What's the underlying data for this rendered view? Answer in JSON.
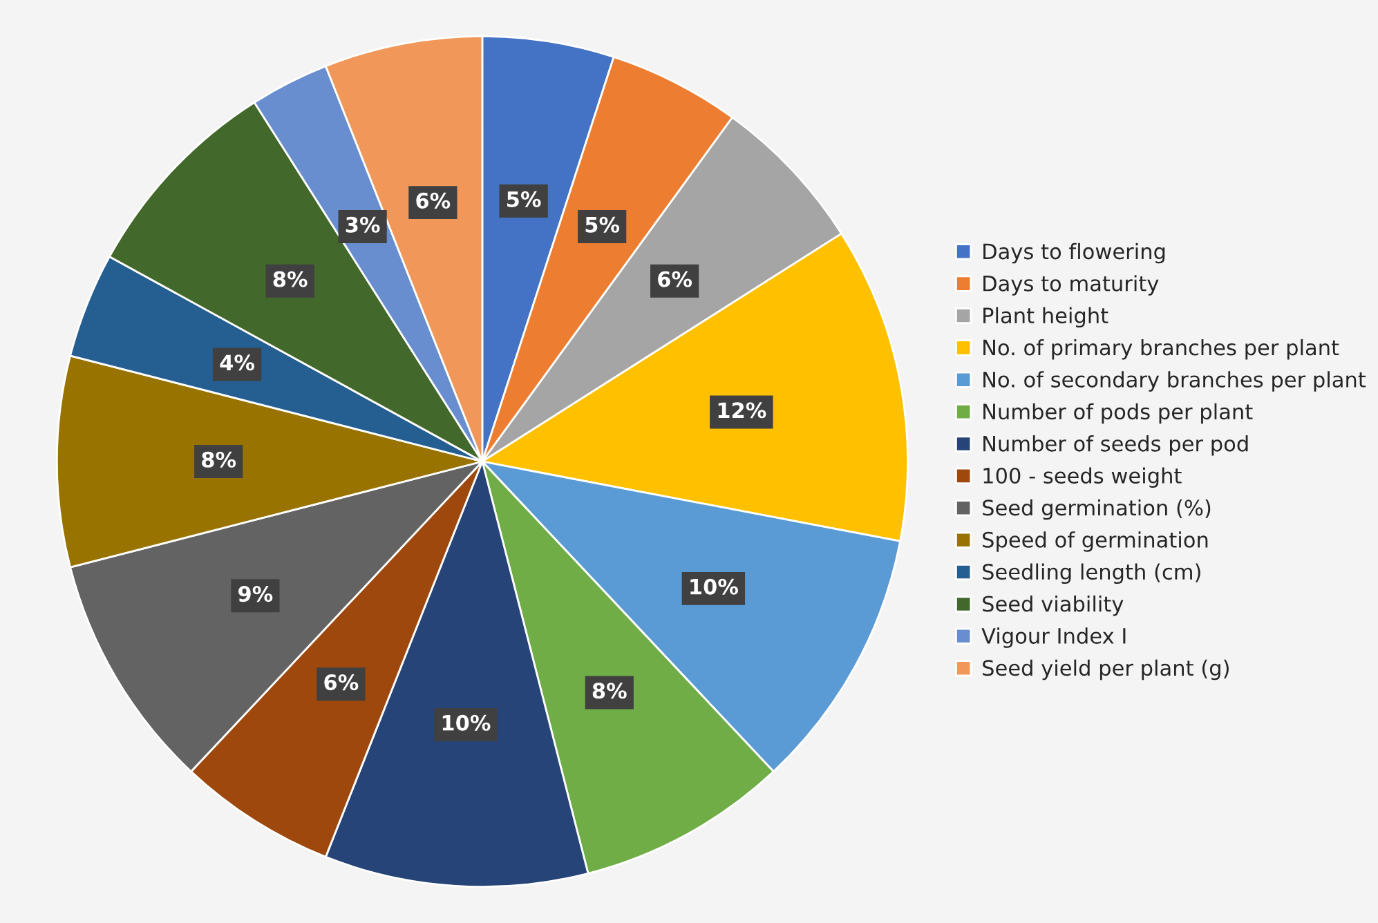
{
  "chart_data": {
    "type": "pie",
    "categories": [
      "Days to flowering",
      "Days to maturity",
      "Plant height",
      "No. of primary branches per plant",
      "No. of secondary branches per plant",
      "Number of pods per plant",
      "Number of seeds per pod",
      "100 - seeds weight",
      "Seed germination (%)",
      "Speed of germination",
      "Seedling length (cm)",
      "Seed viability",
      "Vigour Index I",
      "Seed yield per plant (g)"
    ],
    "values": [
      5,
      5,
      6,
      12,
      10,
      8,
      10,
      6,
      9,
      8,
      4,
      8,
      3,
      6
    ],
    "value_labels": [
      "5%",
      "5%",
      "6%",
      "12%",
      "10%",
      "8%",
      "10%",
      "6%",
      "9%",
      "8%",
      "4%",
      "8%",
      "3%",
      "6%"
    ],
    "colors": [
      "#4472c4",
      "#ed7d31",
      "#a5a5a5",
      "#ffc000",
      "#5b9bd5",
      "#70ad47",
      "#264478",
      "#9e480e",
      "#636363",
      "#997300",
      "#255e91",
      "#43682b",
      "#698ed0",
      "#f1975a"
    ],
    "legend": "right"
  }
}
